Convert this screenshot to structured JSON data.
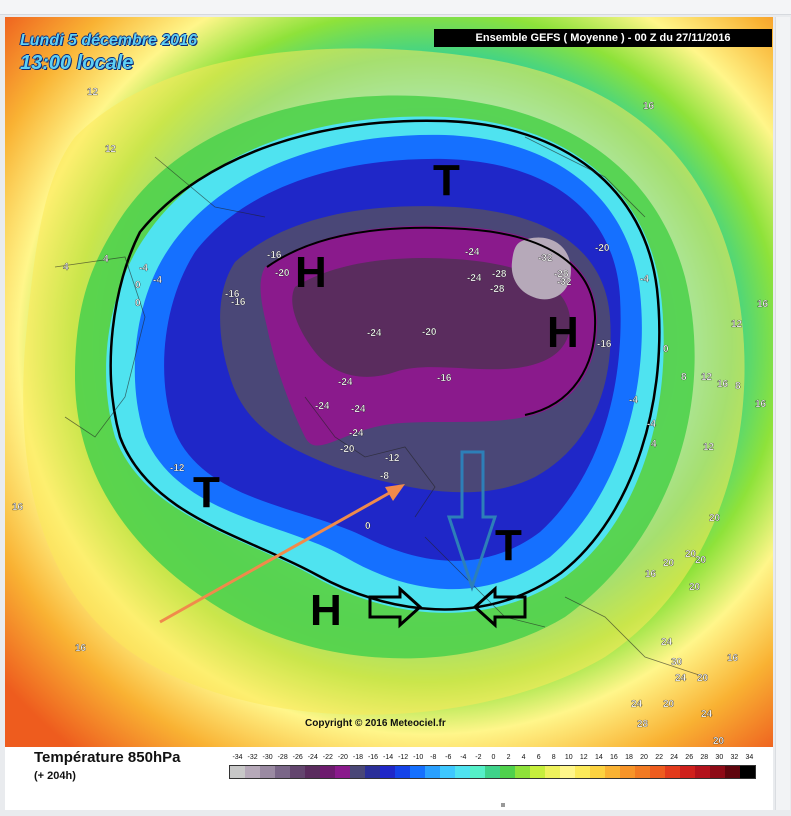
{
  "map": {
    "date_line": "Lundi 5 décembre 2016",
    "time_line": "13:00 locale",
    "run_header": "Ensemble GEFS  ( Moyenne )  -  00 Z du 27/11/2016",
    "copyright": "Copyright © 2016 Meteociel.fr",
    "legend_title": "Température 850hPa",
    "legend_sub": "(+ 204h)"
  },
  "scale": {
    "ticks": [
      "-34",
      "-32",
      "-30",
      "-28",
      "-26",
      "-24",
      "-22",
      "-20",
      "-18",
      "-16",
      "-14",
      "-12",
      "-10",
      "-8",
      "-6",
      "-4",
      "-2",
      "0",
      "2",
      "4",
      "6",
      "8",
      "10",
      "12",
      "14",
      "16",
      "18",
      "20",
      "22",
      "24",
      "26",
      "28",
      "30",
      "32",
      "34"
    ],
    "colors": [
      "#c8c8c8",
      "#b6a9b9",
      "#9a8aa2",
      "#7a6688",
      "#63456e",
      "#5a2c5e",
      "#6d1b6e",
      "#8a1a8c",
      "#4a4777",
      "#2b2f99",
      "#1f27c8",
      "#1543e8",
      "#1570ff",
      "#2aa0ff",
      "#3ec8ff",
      "#4fe3f0",
      "#55f0c8",
      "#3ed38a",
      "#4fd14c",
      "#8ee23a",
      "#c6ef3c",
      "#eef25c",
      "#fff68a",
      "#fcea5a",
      "#fcd240",
      "#f9b233",
      "#f79428",
      "#f27a22",
      "#ee5c1e",
      "#e33b1c",
      "#cf201c",
      "#b3121c",
      "#8e0a16",
      "#5f050d",
      "#000000"
    ]
  },
  "labels": {
    "temps": [
      {
        "t": "12"
      },
      {
        "t": "12"
      },
      {
        "t": "16"
      },
      {
        "t": "4"
      },
      {
        "t": "4"
      },
      {
        "t": "-4"
      },
      {
        "t": "0"
      },
      {
        "t": "-4"
      },
      {
        "t": "0"
      },
      {
        "t": "-16"
      },
      {
        "t": "-20"
      },
      {
        "t": "-16"
      },
      {
        "t": "-16"
      },
      {
        "t": "-24"
      },
      {
        "t": "-24"
      },
      {
        "t": "-28"
      },
      {
        "t": "-28"
      },
      {
        "t": "-32"
      },
      {
        "t": "-28"
      },
      {
        "t": "-32"
      },
      {
        "t": "-20"
      },
      {
        "t": "-4"
      },
      {
        "t": "-16"
      },
      {
        "t": "-24"
      },
      {
        "t": "-20"
      },
      {
        "t": "-16"
      },
      {
        "t": "-24"
      },
      {
        "t": "-24"
      },
      {
        "t": "-24"
      },
      {
        "t": "-24"
      },
      {
        "t": "-20"
      },
      {
        "t": "-12"
      },
      {
        "t": "-8"
      },
      {
        "t": "-12"
      },
      {
        "t": "0"
      },
      {
        "t": "0"
      },
      {
        "t": "-4"
      },
      {
        "t": "-4"
      },
      {
        "t": "4"
      },
      {
        "t": "8"
      },
      {
        "t": "12"
      },
      {
        "t": "16"
      },
      {
        "t": "16"
      },
      {
        "t": "12"
      },
      {
        "t": "8"
      },
      {
        "t": "12"
      },
      {
        "t": "16"
      },
      {
        "t": "16"
      },
      {
        "t": "20"
      },
      {
        "t": "20"
      },
      {
        "t": "16"
      },
      {
        "t": "20"
      },
      {
        "t": "20"
      },
      {
        "t": "20"
      },
      {
        "t": "24"
      },
      {
        "t": "30"
      },
      {
        "t": "24"
      },
      {
        "t": "20"
      },
      {
        "t": "16"
      },
      {
        "t": "24"
      },
      {
        "t": "20"
      },
      {
        "t": "24"
      },
      {
        "t": "28"
      },
      {
        "t": "20"
      },
      {
        "t": "16"
      }
    ],
    "pressure": [
      "T",
      "H",
      "H",
      "T",
      "T",
      "H"
    ]
  }
}
